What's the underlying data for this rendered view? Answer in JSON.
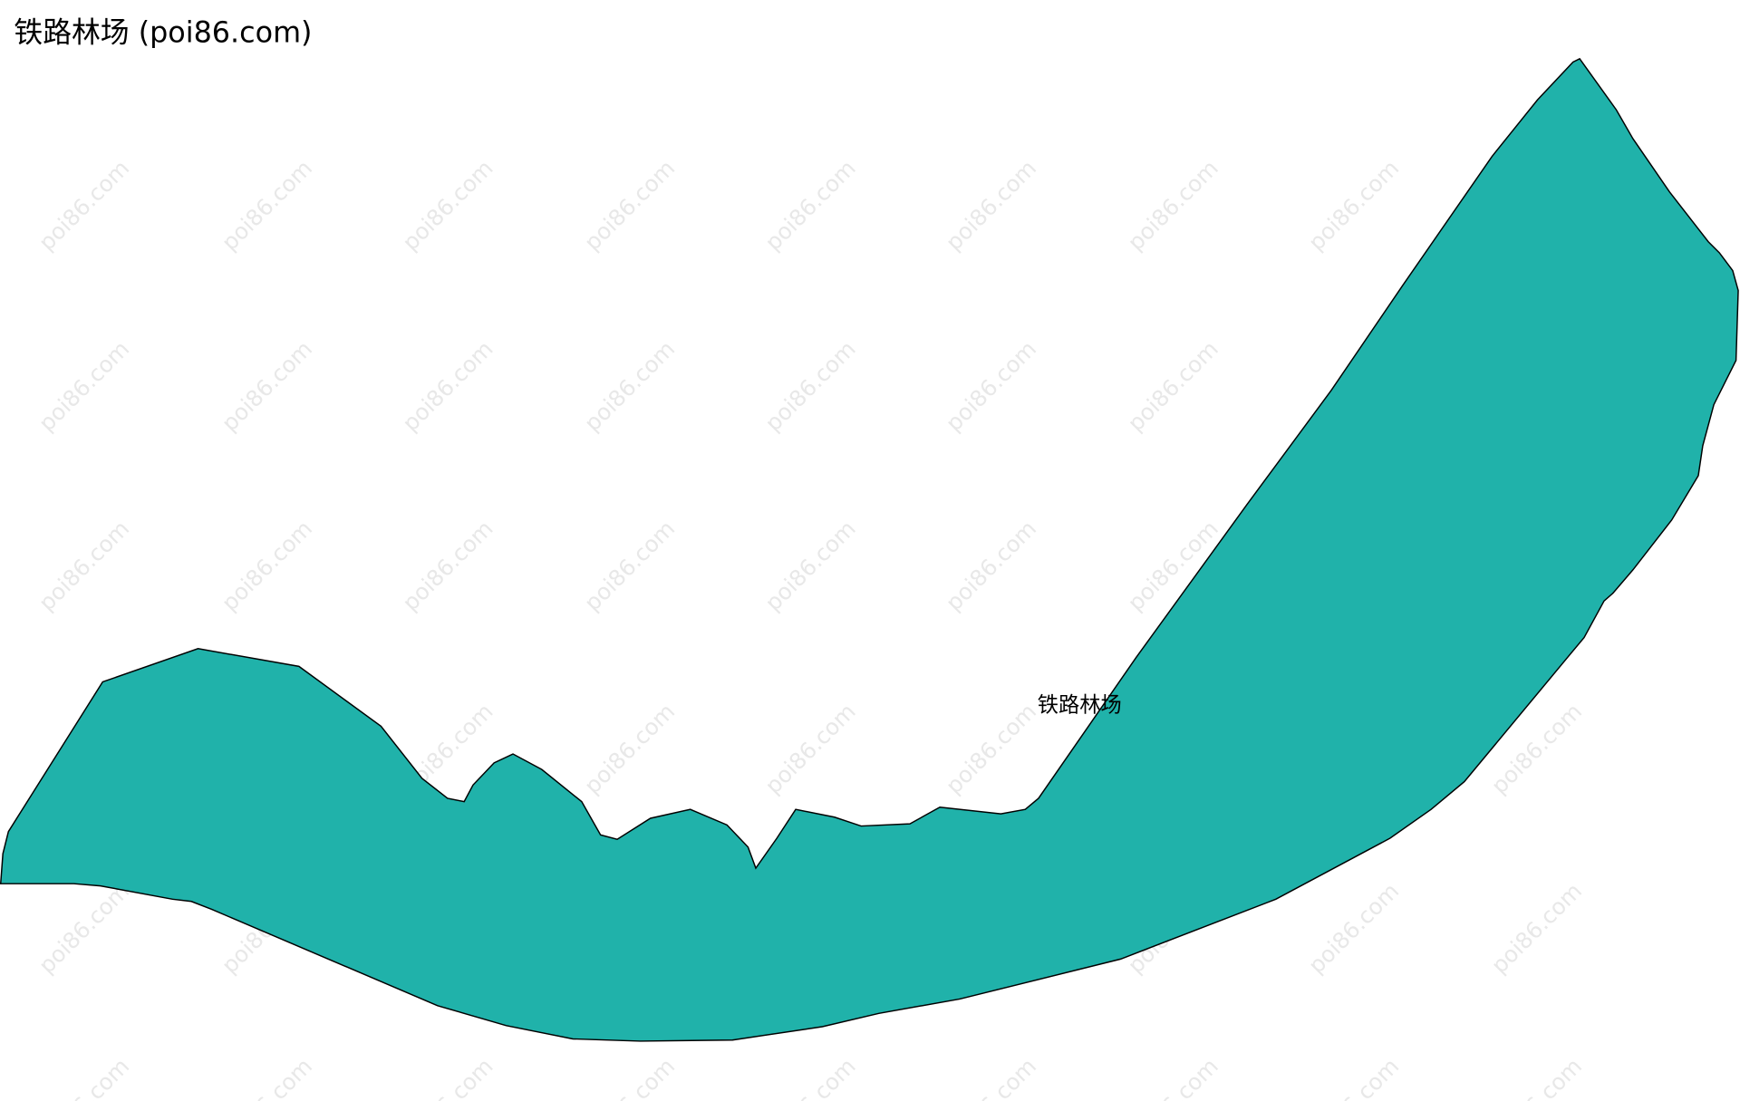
{
  "title": "铁路林场 (poi86.com)",
  "area_label": "铁路林场",
  "watermark": "poi86.com"
}
